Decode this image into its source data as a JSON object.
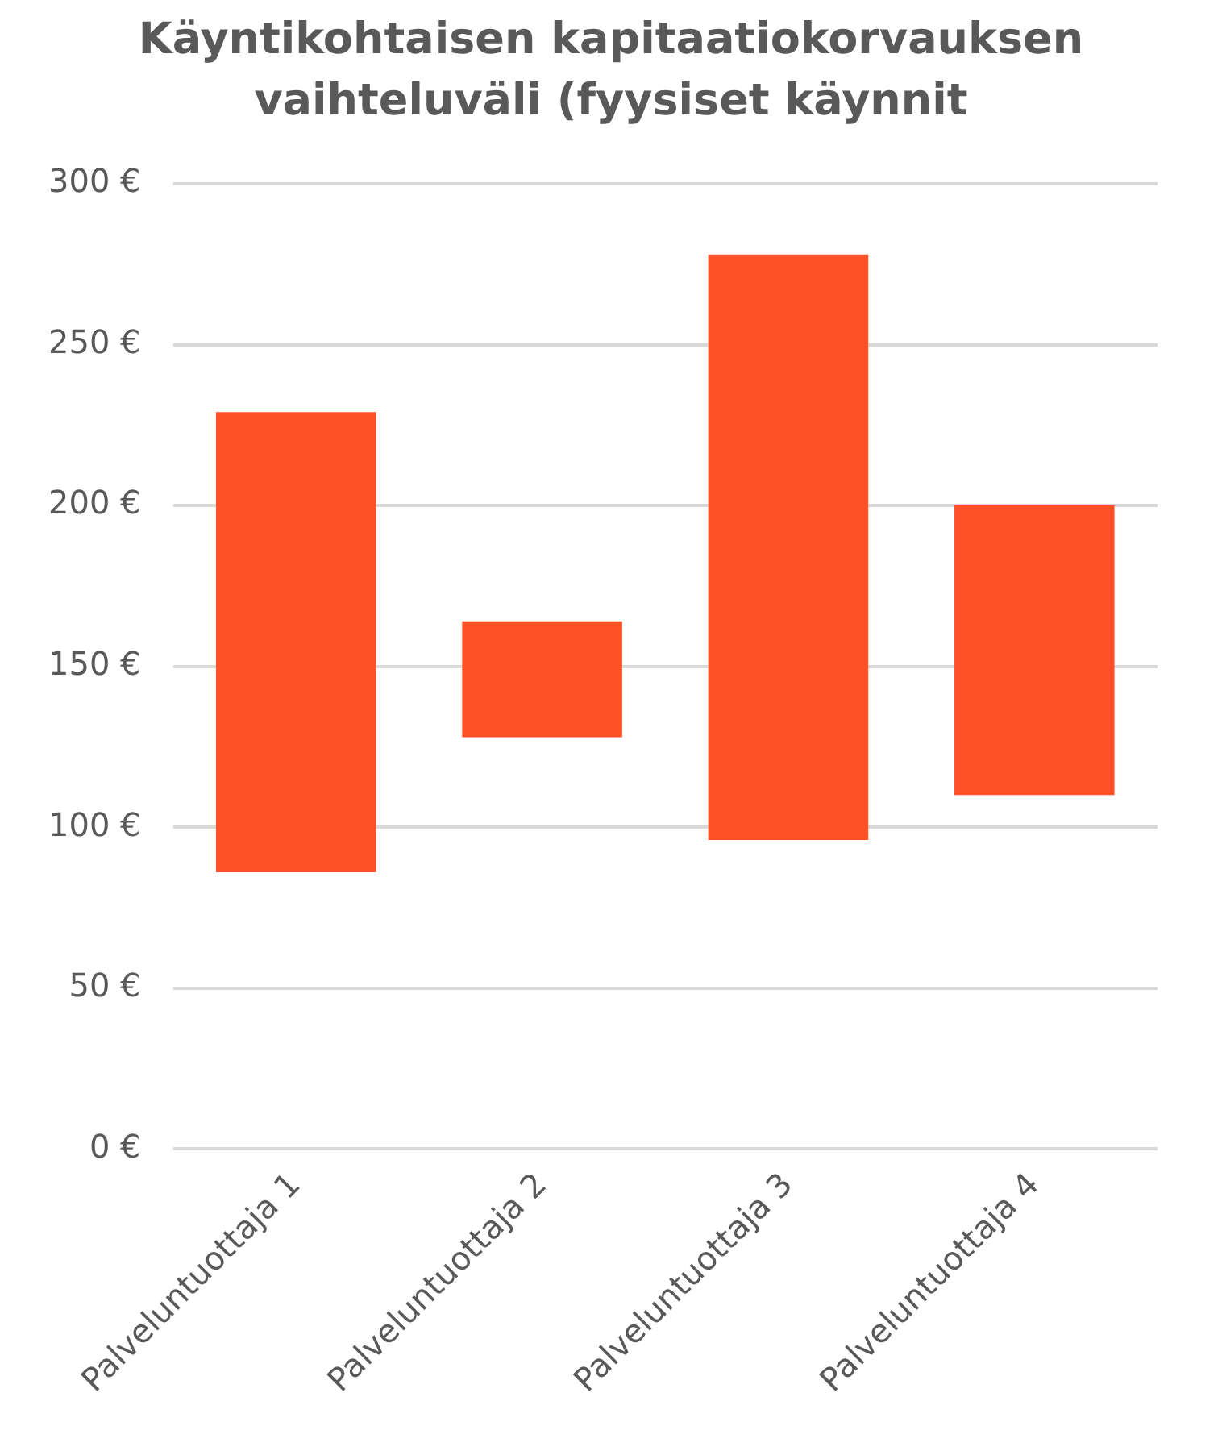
{
  "chart_data": {
    "type": "bar",
    "title": "Käyntikohtaisen kapitaatiokorvauksen vaihteluväli (fyysiset käynnit",
    "categories": [
      "Palveluntuottaja 1",
      "Palveluntuottaja 2",
      "Palveluntuottaja 3",
      "Palveluntuottaja 4"
    ],
    "base": [
      86,
      128,
      96,
      110
    ],
    "values": [
      143,
      36,
      182,
      90
    ],
    "color": "#ff5028",
    "ylim": [
      0,
      300
    ],
    "yticks": [
      {
        "value": 0,
        "label": "0 €"
      },
      {
        "value": 50,
        "label": "50 €"
      },
      {
        "value": 100,
        "label": "100 €"
      },
      {
        "value": 150,
        "label": "150 €"
      },
      {
        "value": 200,
        "label": "200 €"
      },
      {
        "value": 250,
        "label": "250 €"
      },
      {
        "value": 300,
        "label": "300 €"
      }
    ],
    "grid": "y"
  }
}
